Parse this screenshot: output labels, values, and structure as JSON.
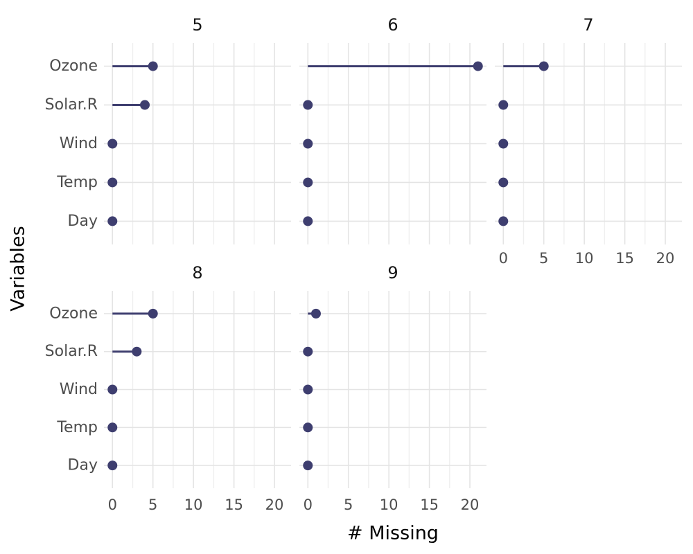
{
  "chart_data": {
    "type": "lollipop",
    "title": "",
    "xlabel": "# Missing",
    "ylabel": "Variables",
    "categories": [
      "Ozone",
      "Solar.R",
      "Wind",
      "Temp",
      "Day"
    ],
    "x_tick_labels": [
      "0",
      "5",
      "10",
      "15",
      "20"
    ],
    "x_tick_values": [
      0,
      5,
      10,
      15,
      20
    ],
    "x_minor_tick_values": [
      2.5,
      7.5,
      12.5,
      17.5
    ],
    "xlim": [
      -1.05,
      22.05
    ],
    "grid": "vertical major+minor and horizontal major gridlines, no axis lines, no panel border",
    "legend": "none",
    "facet_variable": "Month",
    "facets": [
      {
        "label": "5",
        "values": [
          5,
          4,
          0,
          0,
          0
        ]
      },
      {
        "label": "6",
        "values": [
          21,
          0,
          0,
          0,
          0
        ]
      },
      {
        "label": "7",
        "values": [
          5,
          0,
          0,
          0,
          0
        ]
      },
      {
        "label": "8",
        "values": [
          5,
          3,
          0,
          0,
          0
        ]
      },
      {
        "label": "9",
        "values": [
          1,
          0,
          0,
          0,
          0
        ]
      }
    ],
    "colors": {
      "point": "#3E3E6F",
      "stem": "#3E3E6F",
      "grid_major": "#e4e4e4",
      "grid_minor": "#efefef",
      "axis_text": "#4d4d4d",
      "strip_text": "#141414",
      "axis_title_text": "#000000",
      "background": "#ffffff"
    }
  }
}
